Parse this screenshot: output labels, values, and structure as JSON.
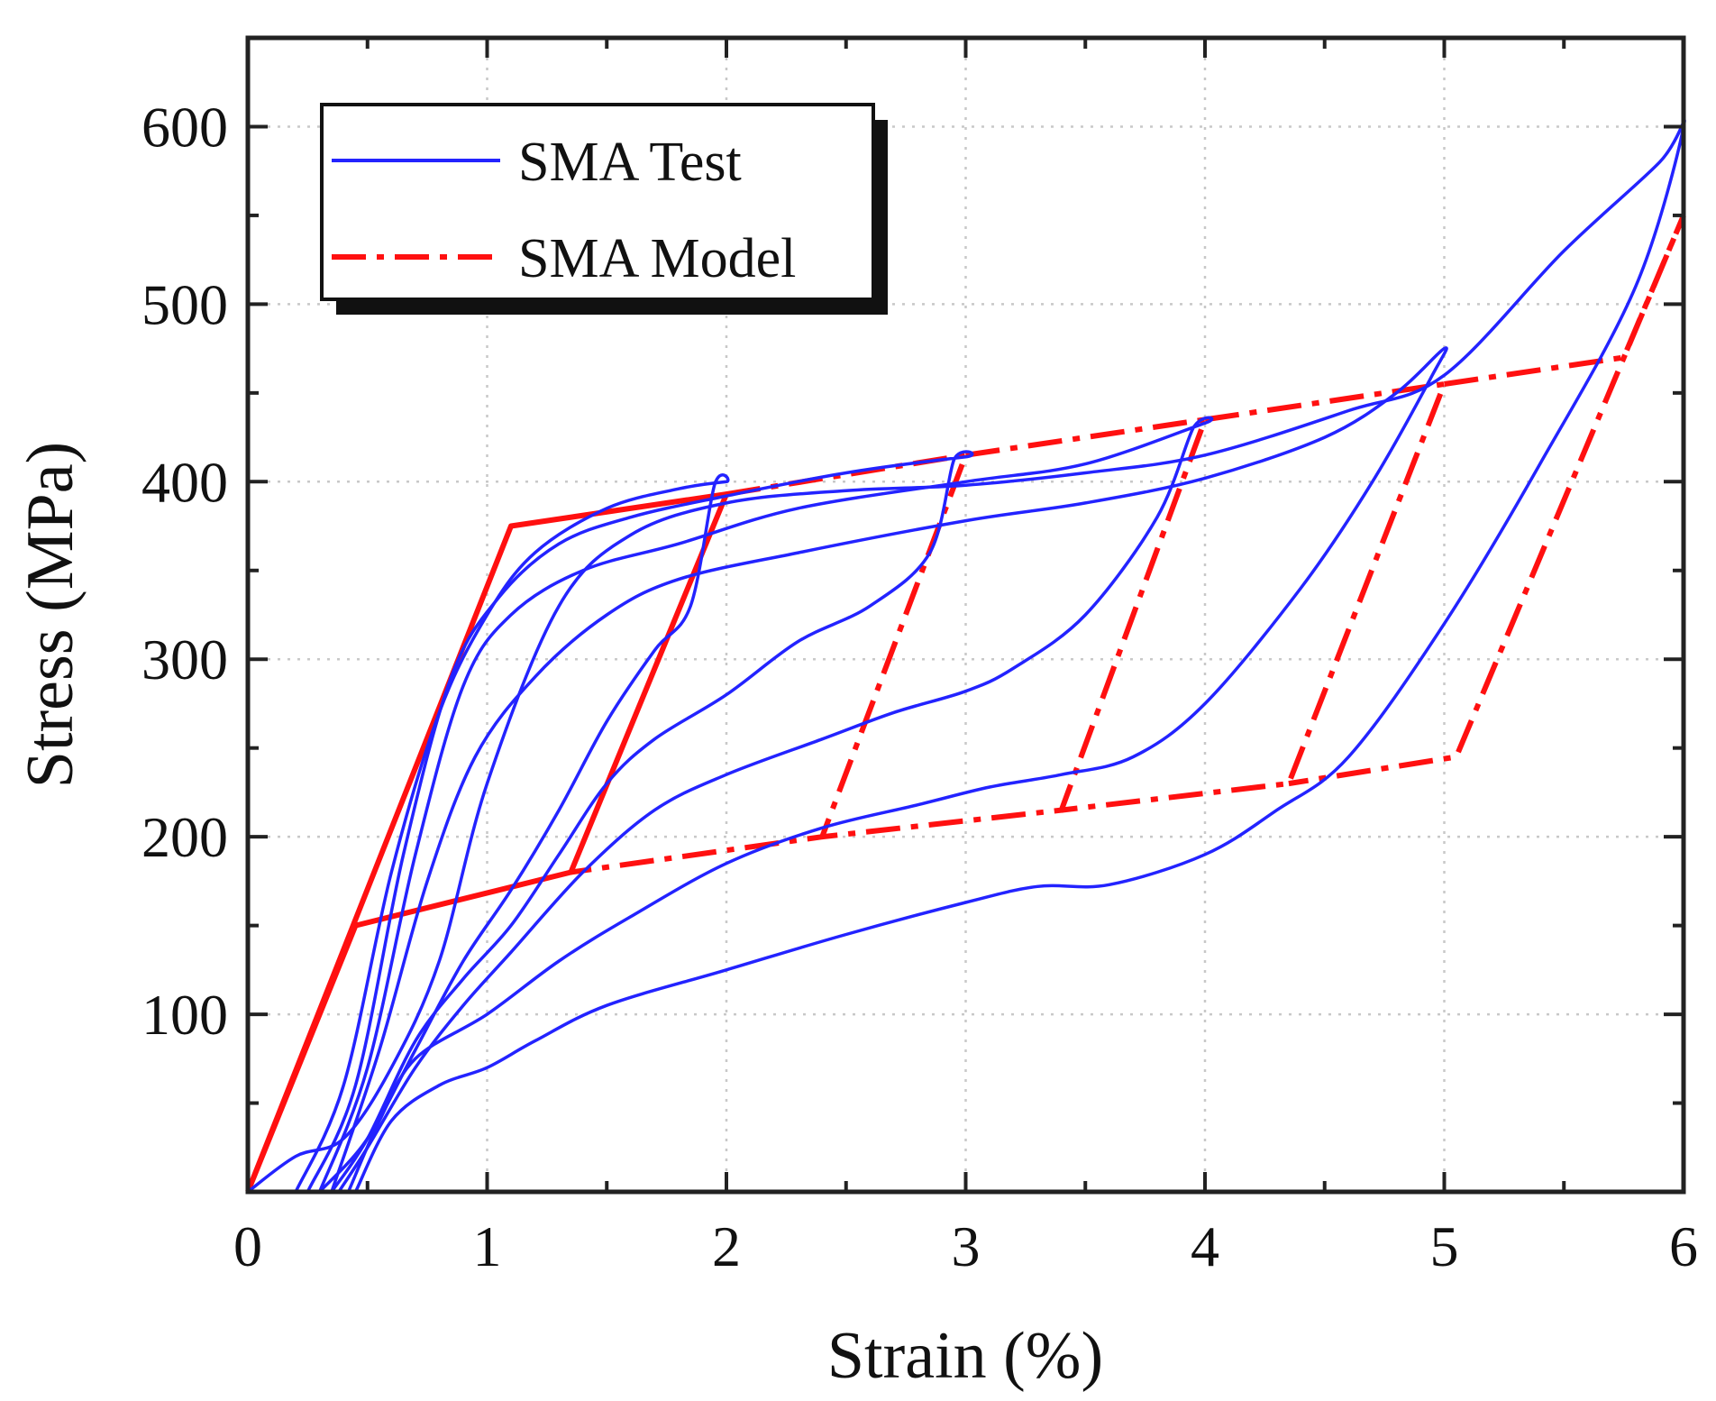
{
  "chart_data": {
    "type": "line",
    "title": "",
    "xlabel": "Strain (%)",
    "ylabel": "Stress (MPa)",
    "xlim": [
      0,
      6
    ],
    "ylim": [
      0,
      650
    ],
    "xticks": [
      0,
      1,
      2,
      3,
      4,
      5,
      6
    ],
    "yticks": [
      100,
      200,
      300,
      400,
      500,
      600
    ],
    "xtick_labels": [
      "0",
      "1",
      "2",
      "3",
      "4",
      "5",
      "6"
    ],
    "ytick_labels": [
      "100",
      "200",
      "300",
      "400",
      "500",
      "600"
    ],
    "grid": true,
    "legend": {
      "position": "top-left",
      "entries": [
        "SMA Test",
        "SMA Model"
      ]
    },
    "colors": {
      "test": "#2323ff",
      "model": "#ff1010"
    },
    "series": [
      {
        "name": "SMA Test",
        "style": "solid",
        "loops": [
          {
            "max_strain": 2,
            "points": [
              [
                0.2,
                0
              ],
              [
                0.4,
                60
              ],
              [
                0.6,
                180
              ],
              [
                0.8,
                270
              ],
              [
                1.0,
                325
              ],
              [
                1.2,
                360
              ],
              [
                1.5,
                385
              ],
              [
                1.8,
                396
              ],
              [
                2.0,
                400
              ],
              [
                1.95,
                398
              ],
              [
                1.85,
                330
              ],
              [
                1.7,
                305
              ],
              [
                1.5,
                265
              ],
              [
                1.3,
                215
              ],
              [
                1.1,
                170
              ],
              [
                0.9,
                130
              ],
              [
                0.7,
                80
              ],
              [
                0.5,
                30
              ],
              [
                0.3,
                0
              ]
            ]
          },
          {
            "max_strain": 3,
            "points": [
              [
                0.25,
                0
              ],
              [
                0.45,
                60
              ],
              [
                0.65,
                190
              ],
              [
                0.85,
                290
              ],
              [
                1.05,
                335
              ],
              [
                1.3,
                365
              ],
              [
                1.6,
                380
              ],
              [
                2.0,
                392
              ],
              [
                2.5,
                405
              ],
              [
                3.0,
                414
              ],
              [
                2.95,
                412
              ],
              [
                2.85,
                360
              ],
              [
                2.6,
                330
              ],
              [
                2.3,
                310
              ],
              [
                2.0,
                280
              ],
              [
                1.7,
                255
              ],
              [
                1.5,
                230
              ],
              [
                1.3,
                190
              ],
              [
                1.1,
                150
              ],
              [
                0.9,
                120
              ],
              [
                0.7,
                85
              ],
              [
                0.5,
                30
              ],
              [
                0.35,
                0
              ]
            ]
          },
          {
            "max_strain": 4,
            "points": [
              [
                0.3,
                0
              ],
              [
                0.5,
                70
              ],
              [
                0.7,
                190
              ],
              [
                0.9,
                285
              ],
              [
                1.1,
                325
              ],
              [
                1.4,
                350
              ],
              [
                1.8,
                365
              ],
              [
                2.3,
                385
              ],
              [
                3.0,
                400
              ],
              [
                3.5,
                410
              ],
              [
                4.0,
                433
              ],
              [
                3.95,
                430
              ],
              [
                3.8,
                380
              ],
              [
                3.5,
                325
              ],
              [
                3.2,
                295
              ],
              [
                3.0,
                282
              ],
              [
                2.7,
                270
              ],
              [
                2.4,
                255
              ],
              [
                2.0,
                235
              ],
              [
                1.7,
                215
              ],
              [
                1.4,
                180
              ],
              [
                1.1,
                135
              ],
              [
                0.9,
                105
              ],
              [
                0.7,
                70
              ],
              [
                0.5,
                25
              ],
              [
                0.38,
                0
              ]
            ]
          },
          {
            "max_strain": 5,
            "points": [
              [
                0.35,
                0
              ],
              [
                0.55,
                80
              ],
              [
                0.75,
                175
              ],
              [
                0.95,
                245
              ],
              [
                1.2,
                290
              ],
              [
                1.5,
                325
              ],
              [
                1.8,
                345
              ],
              [
                2.3,
                360
              ],
              [
                3.0,
                378
              ],
              [
                3.5,
                388
              ],
              [
                4.0,
                402
              ],
              [
                4.5,
                425
              ],
              [
                4.8,
                450
              ],
              [
                5.0,
                475
              ],
              [
                4.95,
                460
              ],
              [
                4.7,
                400
              ],
              [
                4.4,
                340
              ],
              [
                4.0,
                275
              ],
              [
                3.7,
                245
              ],
              [
                3.4,
                235
              ],
              [
                3.1,
                228
              ],
              [
                2.8,
                218
              ],
              [
                2.4,
                205
              ],
              [
                2.0,
                185
              ],
              [
                1.6,
                155
              ],
              [
                1.3,
                130
              ],
              [
                1.0,
                100
              ],
              [
                0.7,
                75
              ],
              [
                0.55,
                40
              ],
              [
                0.42,
                0
              ]
            ]
          },
          {
            "max_strain": 6,
            "points": [
              [
                0.45,
                0
              ],
              [
                0.6,
                40
              ],
              [
                0.8,
                60
              ],
              [
                1.0,
                70
              ],
              [
                1.2,
                85
              ],
              [
                1.5,
                105
              ],
              [
                2.0,
                125
              ],
              [
                2.5,
                145
              ],
              [
                3.0,
                163
              ],
              [
                3.3,
                172
              ],
              [
                3.6,
                173
              ],
              [
                4.0,
                190
              ],
              [
                4.3,
                215
              ],
              [
                4.6,
                245
              ],
              [
                5.0,
                320
              ],
              [
                5.4,
                410
              ],
              [
                5.8,
                510
              ],
              [
                6.0,
                600
              ],
              [
                5.9,
                580
              ],
              [
                5.5,
                530
              ],
              [
                5.0,
                460
              ],
              [
                4.6,
                440
              ],
              [
                4.0,
                415
              ],
              [
                3.5,
                405
              ],
              [
                3.0,
                398
              ],
              [
                2.5,
                395
              ],
              [
                2.0,
                388
              ],
              [
                1.6,
                370
              ],
              [
                1.3,
                330
              ],
              [
                1.0,
                230
              ],
              [
                0.8,
                130
              ],
              [
                0.6,
                70
              ],
              [
                0.4,
                30
              ],
              [
                0.2,
                20
              ],
              [
                0.0,
                0
              ]
            ]
          }
        ]
      },
      {
        "name": "SMA Model",
        "style": "solid / dash-dot",
        "loops": [
          {
            "points": [
              [
                0,
                0
              ],
              [
                1.1,
                375
              ],
              [
                2.0,
                393
              ],
              [
                1.35,
                180
              ],
              [
                0.45,
                150
              ],
              [
                0,
                0
              ]
            ]
          },
          {
            "points": [
              [
                2.0,
                393
              ],
              [
                3.0,
                415
              ],
              [
                2.4,
                200
              ],
              [
                1.35,
                180
              ]
            ]
          },
          {
            "points": [
              [
                3.0,
                415
              ],
              [
                4.0,
                435
              ],
              [
                3.4,
                215
              ],
              [
                2.4,
                200
              ]
            ]
          },
          {
            "points": [
              [
                4.0,
                435
              ],
              [
                5.0,
                455
              ],
              [
                4.35,
                230
              ],
              [
                3.4,
                215
              ]
            ]
          },
          {
            "points": [
              [
                5.0,
                455
              ],
              [
                5.75,
                470
              ],
              [
                6.0,
                550
              ],
              [
                5.05,
                245
              ],
              [
                4.35,
                230
              ]
            ]
          }
        ]
      }
    ]
  }
}
